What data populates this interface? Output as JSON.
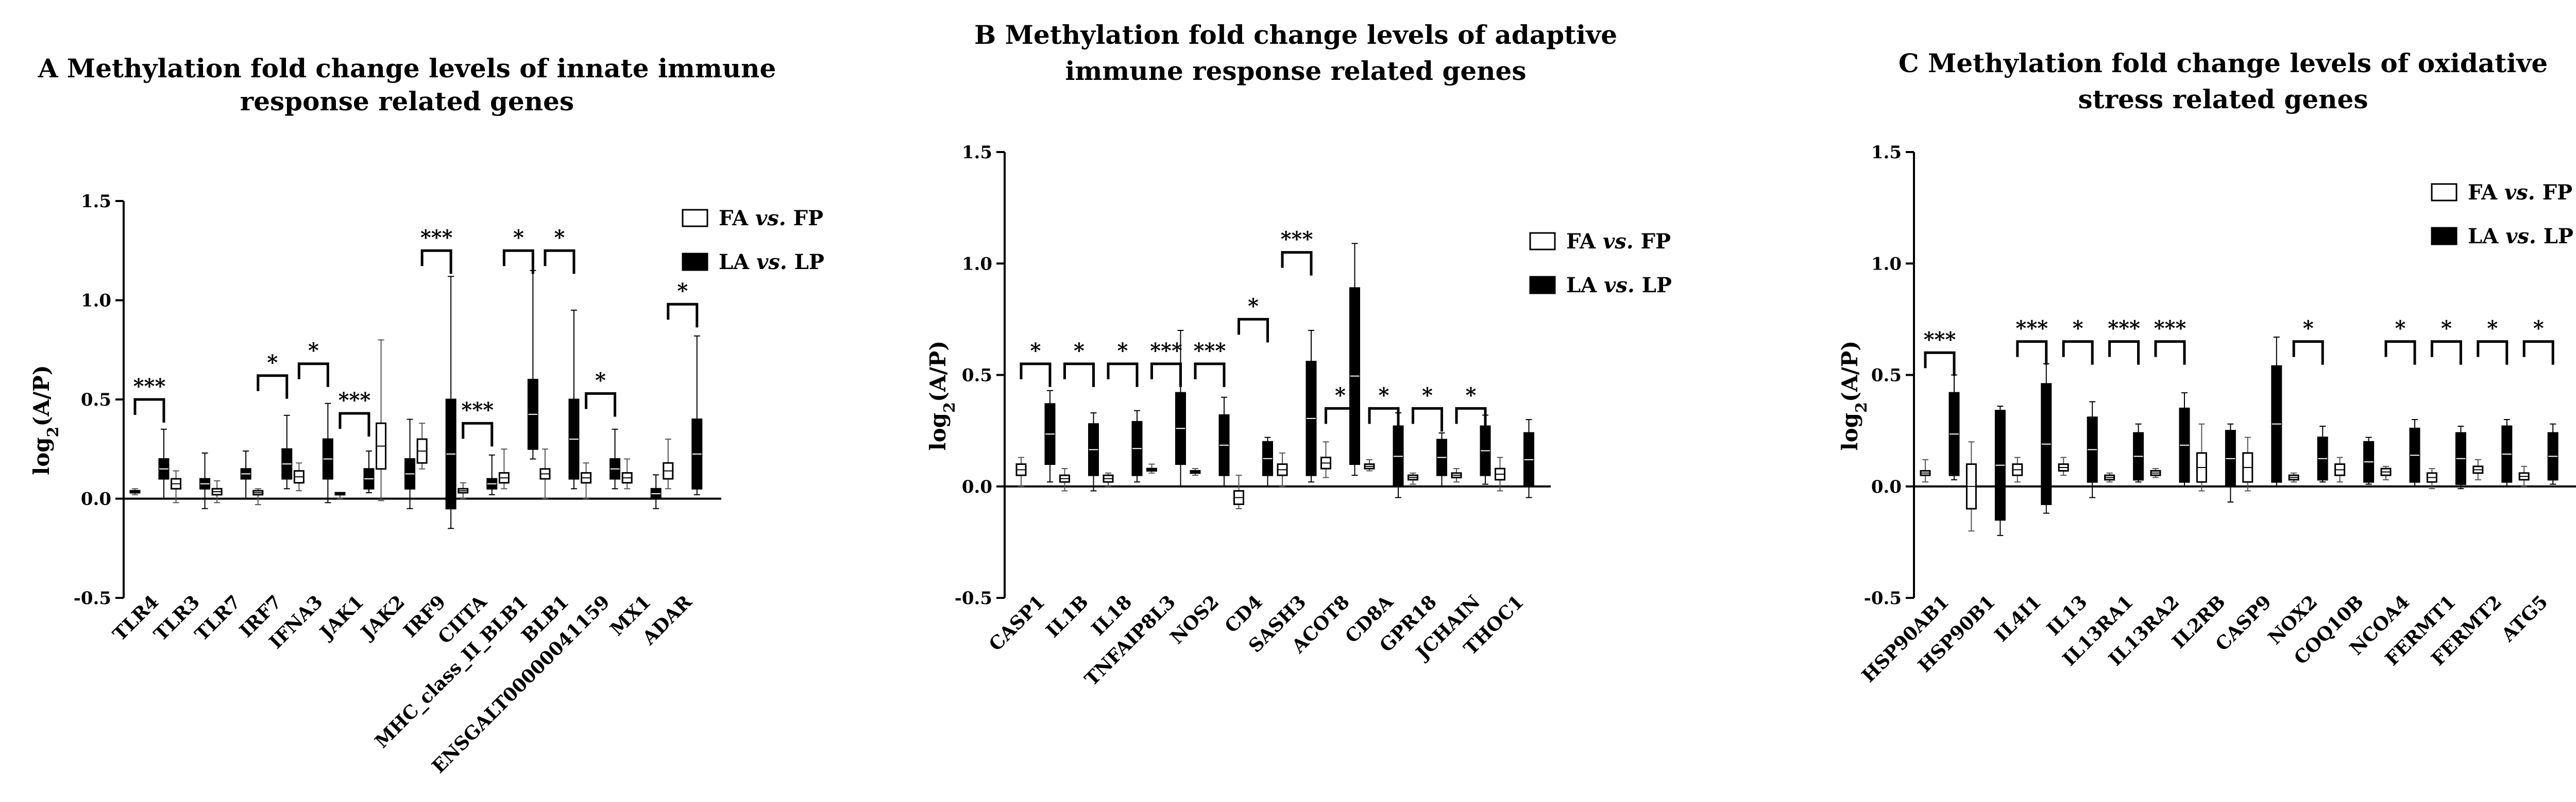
{
  "chart_data": [
    {
      "type": "bar",
      "panel_letter": "A",
      "title_lines": [
        "Methylation fold change levels of innate immune",
        "response related genes"
      ],
      "ylabel": "log2(A/P)",
      "ylim": [
        -0.5,
        1.5
      ],
      "yticks": [
        -0.5,
        0.0,
        0.5,
        1.0,
        1.5
      ],
      "ytick_labels": [
        "-0.5",
        "0.0",
        "0.5",
        "1.0",
        "1.5"
      ],
      "legend": {
        "position": "top-right",
        "entries": [
          {
            "prefix": "FA",
            "vs": "vs.",
            "suffix": "FP",
            "style": "open"
          },
          {
            "prefix": "LA",
            "vs": "vs.",
            "suffix": "LP",
            "style": "filled"
          }
        ]
      },
      "categories": [
        "TLR4",
        "TLR3",
        "TLR7",
        "IRF7",
        "IFNA3",
        "JAK1",
        "JAK2",
        "IRF9",
        "CIITA",
        "MHC_class_II_BLB1",
        "BLB1",
        "ENSGALT00000041159",
        "MX1",
        "ADAR"
      ],
      "series": [
        {
          "name": "FA vs. FP",
          "style": "open",
          "values": [
            [
              0.02,
              0.03,
              0.04,
              0.05
            ],
            [
              -0.02,
              0.05,
              0.1,
              0.14
            ],
            [
              -0.02,
              0.02,
              0.05,
              0.09
            ],
            [
              -0.03,
              0.02,
              0.04,
              0.05
            ],
            [
              0.04,
              0.08,
              0.14,
              0.18
            ],
            [
              0.0,
              0.02,
              0.03,
              0.03
            ],
            [
              -0.01,
              0.15,
              0.38,
              0.8
            ],
            [
              0.15,
              0.18,
              0.3,
              0.38
            ],
            [
              0.0,
              0.03,
              0.05,
              0.08
            ],
            [
              0.05,
              0.08,
              0.13,
              0.25
            ],
            [
              0.0,
              0.1,
              0.15,
              0.25
            ],
            [
              0.0,
              0.08,
              0.13,
              0.18
            ],
            [
              0.05,
              0.08,
              0.13,
              0.2
            ],
            [
              0.05,
              0.1,
              0.18,
              0.3
            ]
          ]
        },
        {
          "name": "LA vs. LP",
          "style": "filled",
          "values": [
            [
              0.0,
              0.1,
              0.2,
              0.35
            ],
            [
              -0.05,
              0.05,
              0.1,
              0.23
            ],
            [
              0.0,
              0.1,
              0.15,
              0.24
            ],
            [
              0.05,
              0.1,
              0.25,
              0.42
            ],
            [
              -0.02,
              0.1,
              0.3,
              0.48
            ],
            [
              0.03,
              0.05,
              0.15,
              0.24
            ],
            [
              -0.05,
              0.05,
              0.2,
              0.4
            ],
            [
              -0.15,
              -0.05,
              0.5,
              1.12
            ],
            [
              0.02,
              0.05,
              0.1,
              0.22
            ],
            [
              0.2,
              0.25,
              0.6,
              1.15
            ],
            [
              0.05,
              0.1,
              0.5,
              0.95
            ],
            [
              0.05,
              0.1,
              0.2,
              0.35
            ],
            [
              -0.05,
              0.0,
              0.05,
              0.12
            ],
            [
              0.02,
              0.05,
              0.4,
              0.82
            ]
          ]
        }
      ],
      "significance": [
        {
          "index": 0,
          "label": "***",
          "y": 0.5
        },
        {
          "index": 3,
          "label": "*",
          "y": 0.62
        },
        {
          "index": 4,
          "label": "*",
          "y": 0.68
        },
        {
          "index": 5,
          "label": "***",
          "y": 0.43
        },
        {
          "index": 7,
          "label": "***",
          "y": 1.25
        },
        {
          "index": 8,
          "label": "***",
          "y": 0.38
        },
        {
          "index": 9,
          "label": "*",
          "y": 1.25
        },
        {
          "index": 10,
          "label": "*",
          "y": 1.25
        },
        {
          "index": 11,
          "label": "*",
          "y": 0.53
        },
        {
          "index": 13,
          "label": "*",
          "y": 0.98
        }
      ]
    },
    {
      "type": "bar",
      "panel_letter": "B",
      "title_lines": [
        "Methylation fold change levels of adaptive",
        "immune response related genes"
      ],
      "ylabel": "log2(A/P)",
      "ylim": [
        -0.5,
        1.5
      ],
      "yticks": [
        -0.5,
        0.0,
        0.5,
        1.0,
        1.5
      ],
      "ytick_labels": [
        "-0.5",
        "0.0",
        "0.5",
        "1.0",
        "1.5"
      ],
      "legend": {
        "position": "top-right",
        "entries": [
          {
            "prefix": "FA",
            "vs": "vs.",
            "suffix": "FP",
            "style": "open"
          },
          {
            "prefix": "LA",
            "vs": "vs.",
            "suffix": "LP",
            "style": "filled"
          }
        ]
      },
      "categories": [
        "CASP1",
        "IL1B",
        "IL18",
        "TNFAIP8L3",
        "NOS2",
        "CD4",
        "SASH3",
        "ACOT8",
        "CD8A",
        "GPR18",
        "JCHAIN",
        "THOC1"
      ],
      "series": [
        {
          "name": "FA vs. FP",
          "style": "open",
          "values": [
            [
              0.0,
              0.05,
              0.1,
              0.13
            ],
            [
              -0.02,
              0.02,
              0.05,
              0.08
            ],
            [
              0.0,
              0.02,
              0.05,
              0.06
            ],
            [
              0.06,
              0.07,
              0.08,
              0.1
            ],
            [
              0.05,
              0.06,
              0.07,
              0.08
            ],
            [
              -0.1,
              -0.08,
              -0.02,
              0.05
            ],
            [
              0.0,
              0.05,
              0.1,
              0.15
            ],
            [
              0.04,
              0.08,
              0.13,
              0.2
            ],
            [
              0.07,
              0.08,
              0.1,
              0.12
            ],
            [
              0.01,
              0.03,
              0.05,
              0.06
            ],
            [
              0.02,
              0.04,
              0.06,
              0.08
            ],
            [
              -0.02,
              0.03,
              0.08,
              0.13
            ]
          ]
        },
        {
          "name": "LA vs. LP",
          "style": "filled",
          "values": [
            [
              0.02,
              0.1,
              0.37,
              0.43
            ],
            [
              -0.02,
              0.05,
              0.28,
              0.33
            ],
            [
              0.02,
              0.05,
              0.29,
              0.34
            ],
            [
              0.0,
              0.1,
              0.42,
              0.7
            ],
            [
              0.0,
              0.05,
              0.32,
              0.4
            ],
            [
              0.0,
              0.05,
              0.2,
              0.22
            ],
            [
              0.02,
              0.05,
              0.56,
              0.7
            ],
            [
              0.05,
              0.1,
              0.89,
              1.09
            ],
            [
              -0.05,
              0.0,
              0.27,
              0.33
            ],
            [
              0.0,
              0.05,
              0.21,
              0.24
            ],
            [
              0.01,
              0.05,
              0.27,
              0.32
            ],
            [
              -0.05,
              0.0,
              0.24,
              0.3
            ]
          ]
        }
      ],
      "significance": [
        {
          "index": 0,
          "label": "*",
          "y": 0.55
        },
        {
          "index": 1,
          "label": "*",
          "y": 0.55
        },
        {
          "index": 2,
          "label": "*",
          "y": 0.55
        },
        {
          "index": 3,
          "label": "***",
          "y": 0.55
        },
        {
          "index": 4,
          "label": "***",
          "y": 0.55
        },
        {
          "index": 5,
          "label": "*",
          "y": 0.75
        },
        {
          "index": 6,
          "label": "***",
          "y": 1.05
        },
        {
          "index": 7,
          "label": "*",
          "y": 0.35
        },
        {
          "index": 8,
          "label": "*",
          "y": 0.35
        },
        {
          "index": 9,
          "label": "*",
          "y": 0.35
        },
        {
          "index": 10,
          "label": "*",
          "y": 0.35
        }
      ]
    },
    {
      "type": "bar",
      "panel_letter": "C",
      "title_lines": [
        "Methylation fold change levels of oxidative",
        "stress related genes"
      ],
      "ylabel": "log2(A/P)",
      "ylim": [
        -0.5,
        1.5
      ],
      "yticks": [
        -0.5,
        0.0,
        0.5,
        1.0,
        1.5
      ],
      "ytick_labels": [
        "-0.5",
        "0.0",
        "0.5",
        "1.0",
        "1.5"
      ],
      "legend": {
        "position": "top-right",
        "entries": [
          {
            "prefix": "FA",
            "vs": "vs.",
            "suffix": "FP",
            "style": "open"
          },
          {
            "prefix": "LA",
            "vs": "vs.",
            "suffix": "LP",
            "style": "filled"
          }
        ]
      },
      "categories": [
        "HSP90AB1",
        "HSP90B1",
        "IL4I1",
        "IL13",
        "IL13RA1",
        "IL13RA2",
        "IL2RB",
        "CASP9",
        "NOX2",
        "COQ10B",
        "NCOA4",
        "FERMT1",
        "FERMT2",
        "ATG5"
      ],
      "series": [
        {
          "name": "FA vs. FP",
          "style": "open",
          "values": [
            [
              0.02,
              0.05,
              0.07,
              0.12
            ],
            [
              -0.2,
              -0.1,
              0.1,
              0.2
            ],
            [
              0.02,
              0.05,
              0.1,
              0.13
            ],
            [
              0.05,
              0.07,
              0.1,
              0.13
            ],
            [
              0.02,
              0.03,
              0.05,
              0.06
            ],
            [
              0.04,
              0.05,
              0.07,
              0.08
            ],
            [
              -0.02,
              0.02,
              0.15,
              0.28
            ],
            [
              -0.02,
              0.02,
              0.15,
              0.22
            ],
            [
              0.02,
              0.03,
              0.05,
              0.06
            ],
            [
              0.02,
              0.05,
              0.1,
              0.13
            ],
            [
              0.03,
              0.05,
              0.08,
              0.09
            ],
            [
              -0.01,
              0.02,
              0.06,
              0.08
            ],
            [
              0.03,
              0.06,
              0.09,
              0.12
            ],
            [
              0.0,
              0.03,
              0.06,
              0.09
            ]
          ]
        },
        {
          "name": "LA vs. LP",
          "style": "filled",
          "values": [
            [
              0.03,
              0.05,
              0.42,
              0.5
            ],
            [
              -0.22,
              -0.15,
              0.34,
              0.36
            ],
            [
              -0.12,
              -0.08,
              0.46,
              0.55
            ],
            [
              -0.05,
              0.02,
              0.31,
              0.38
            ],
            [
              0.02,
              0.03,
              0.24,
              0.28
            ],
            [
              0.0,
              0.02,
              0.35,
              0.42
            ],
            [
              -0.07,
              0.0,
              0.25,
              0.28
            ],
            [
              0.0,
              0.02,
              0.54,
              0.67
            ],
            [
              0.02,
              0.03,
              0.22,
              0.27
            ],
            [
              0.01,
              0.02,
              0.2,
              0.22
            ],
            [
              0.0,
              0.02,
              0.26,
              0.3
            ],
            [
              -0.01,
              0.01,
              0.24,
              0.27
            ],
            [
              0.0,
              0.02,
              0.27,
              0.3
            ],
            [
              0.01,
              0.03,
              0.24,
              0.28
            ]
          ]
        }
      ],
      "significance": [
        {
          "index": 0,
          "label": "***",
          "y": 0.6
        },
        {
          "index": 2,
          "label": "***",
          "y": 0.65
        },
        {
          "index": 3,
          "label": "*",
          "y": 0.65
        },
        {
          "index": 4,
          "label": "***",
          "y": 0.65
        },
        {
          "index": 5,
          "label": "***",
          "y": 0.65
        },
        {
          "index": 8,
          "label": "*",
          "y": 0.65
        },
        {
          "index": 10,
          "label": "*",
          "y": 0.65
        },
        {
          "index": 11,
          "label": "*",
          "y": 0.65
        },
        {
          "index": 12,
          "label": "*",
          "y": 0.65
        },
        {
          "index": 13,
          "label": "*",
          "y": 0.65
        }
      ]
    }
  ]
}
